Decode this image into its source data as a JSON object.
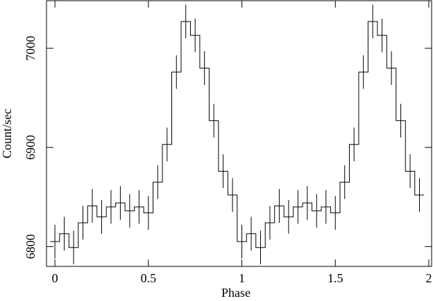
{
  "chart_data": {
    "type": "step",
    "xlabel": "Phase",
    "ylabel": "Count/sec",
    "bin_width": 0.05,
    "x": [
      0,
      0.05,
      0.1,
      0.15,
      0.2,
      0.25,
      0.3,
      0.35,
      0.4,
      0.45,
      0.5,
      0.55,
      0.6,
      0.65,
      0.7,
      0.75,
      0.8,
      0.85,
      0.9,
      0.95,
      1,
      1.05,
      1.1,
      1.15,
      1.2,
      1.25,
      1.3,
      1.35,
      1.4,
      1.45,
      1.5,
      1.55,
      1.6,
      1.65,
      1.7,
      1.75,
      1.8,
      1.85,
      1.9,
      1.95
    ],
    "series": [
      {
        "color": "#000000",
        "values": [
          6805,
          6813,
          6799,
          6824,
          6841,
          6830,
          6840,
          6844,
          6836,
          6840,
          6834,
          6865,
          6903,
          6976,
          7027,
          7013,
          6980,
          6927,
          6876,
          6852,
          6805,
          6813,
          6799,
          6824,
          6841,
          6830,
          6840,
          6844,
          6836,
          6840,
          6834,
          6865,
          6903,
          6976,
          7027,
          7013,
          6980,
          6927,
          6876,
          6852
        ],
        "errors": [
          17,
          17,
          17,
          17,
          17,
          17,
          17,
          17,
          17,
          17,
          17,
          17,
          17,
          17,
          17,
          17,
          17,
          17,
          17,
          17,
          17,
          17,
          17,
          17,
          17,
          17,
          17,
          17,
          17,
          17,
          17,
          17,
          17,
          17,
          17,
          17,
          17,
          17,
          17,
          17
        ]
      }
    ],
    "xlim": [
      -0.045,
      2.015
    ],
    "ylim": [
      6780,
      7048
    ],
    "xticks": [
      0,
      0.5,
      1,
      1.5,
      2
    ],
    "yticks": [
      6800,
      6900,
      7000
    ]
  }
}
